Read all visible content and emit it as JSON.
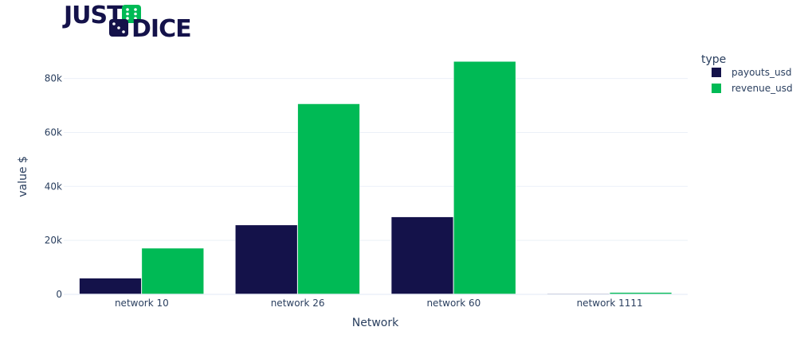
{
  "logo": {
    "text_top": "JUST",
    "text_bottom": "DICE",
    "primary_color": "#14124a",
    "accent_color": "#00ba55"
  },
  "chart_data": {
    "type": "bar",
    "barmode": "group",
    "categories": [
      "network 10",
      "network 26",
      "network 60",
      "network 1111"
    ],
    "series": [
      {
        "name": "payouts_usd",
        "color": "#14124a",
        "values": [
          6000,
          25700,
          28700,
          300
        ]
      },
      {
        "name": "revenue_usd",
        "color": "#00ba55",
        "values": [
          17100,
          70600,
          86300,
          700
        ]
      }
    ],
    "xlabel": "Network",
    "ylabel": "value $",
    "ylim": [
      0,
      90500
    ],
    "yticks": [
      0,
      20000,
      40000,
      60000,
      80000
    ],
    "ytick_labels": [
      "0",
      "20k",
      "40k",
      "60k",
      "80k"
    ],
    "grid": true,
    "legend": {
      "title": "type",
      "placement": "top-right"
    }
  }
}
